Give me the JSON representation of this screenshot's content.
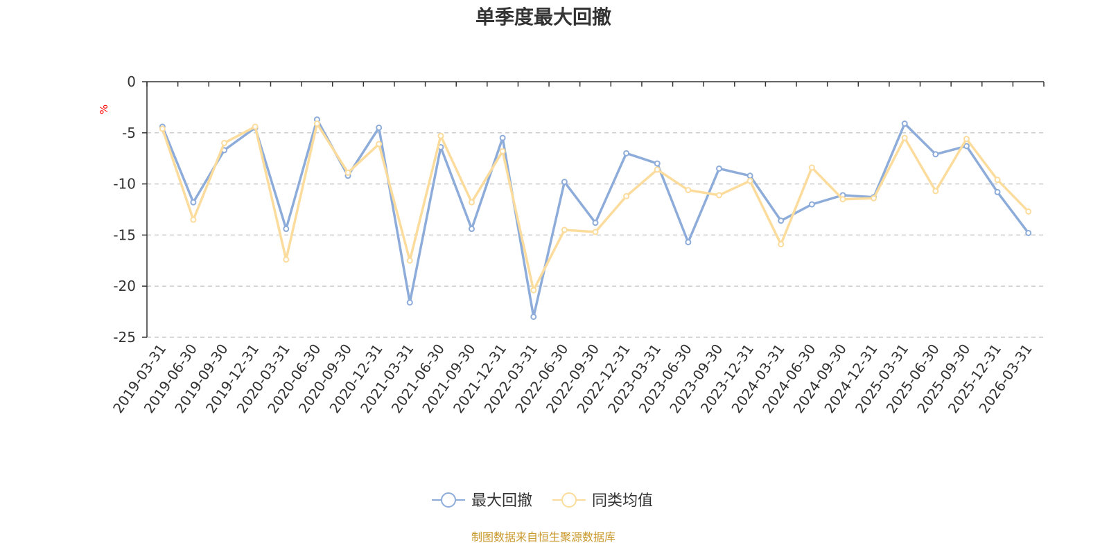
{
  "chart_data": {
    "type": "line",
    "title": "单季度最大回撤",
    "ylabel": "%",
    "ylim": [
      -25,
      0
    ],
    "yticks": [
      0,
      -5,
      -10,
      -15,
      -20,
      -25
    ],
    "grid": true,
    "categories": [
      "2019-03-31",
      "2019-06-30",
      "2019-09-30",
      "2019-12-31",
      "2020-03-31",
      "2020-06-30",
      "2020-09-30",
      "2020-12-31",
      "2021-03-31",
      "2021-06-30",
      "2021-09-30",
      "2021-12-31",
      "2022-03-31",
      "2022-06-30",
      "2022-09-30",
      "2022-12-31",
      "2023-03-31",
      "2023-06-30",
      "2023-09-30",
      "2023-12-31",
      "2024-03-31",
      "2024-06-30",
      "2024-09-30",
      "2024-12-31",
      "2025-03-31",
      "2025-06-30",
      "2025-09-30",
      "2025-12-31",
      "2026-03-31"
    ],
    "series": [
      {
        "name": "最大回撤",
        "color": "#8eacd9",
        "values": [
          -4.4,
          -11.8,
          -6.7,
          -4.5,
          -14.4,
          -3.7,
          -9.2,
          -4.5,
          -21.6,
          -6.4,
          -14.4,
          -5.5,
          -23.0,
          -9.8,
          -13.8,
          -7.0,
          -8.0,
          -15.7,
          -8.5,
          -9.2,
          -13.6,
          -12.0,
          -11.1,
          -11.3,
          -4.1,
          -7.1,
          -6.3,
          -10.8,
          -14.8
        ]
      },
      {
        "name": "同类均值",
        "color": "#fbdc9d",
        "values": [
          -4.6,
          -13.5,
          -6.0,
          -4.4,
          -17.4,
          -4.1,
          -8.9,
          -6.1,
          -17.5,
          -5.3,
          -11.8,
          -6.8,
          -20.4,
          -14.5,
          -14.7,
          -11.2,
          -8.6,
          -10.6,
          -11.1,
          -9.7,
          -15.9,
          -8.4,
          -11.5,
          -11.4,
          -5.5,
          -10.7,
          -5.6,
          -9.6,
          -12.7
        ]
      }
    ],
    "legend_position": "bottom"
  },
  "source": {
    "text": "制图数据来自恒生聚源数据库",
    "color": "#c8982a"
  },
  "colors": {
    "axis": "#333333",
    "grid": "#cccccc",
    "unit": "#ff0000"
  }
}
